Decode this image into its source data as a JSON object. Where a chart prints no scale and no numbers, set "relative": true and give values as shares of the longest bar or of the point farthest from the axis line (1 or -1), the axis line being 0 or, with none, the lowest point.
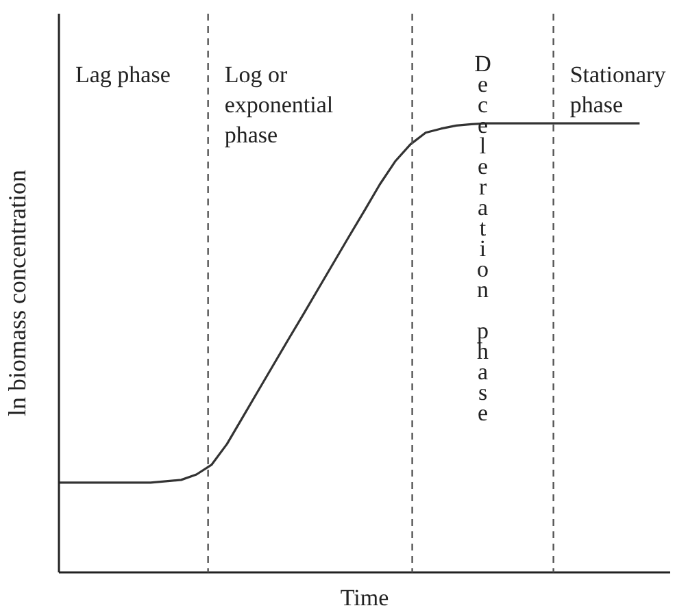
{
  "chart_data": {
    "type": "line",
    "relative": true,
    "xlabel": "Time",
    "ylabel": "ln biomass concentration",
    "tick_labels": false,
    "grid": false,
    "legend": false,
    "marker": "none",
    "categories": [
      null,
      null,
      null,
      null,
      null,
      null,
      null,
      null,
      null,
      null,
      null,
      null,
      null,
      null,
      null,
      null,
      null,
      null,
      null,
      null,
      null,
      null,
      null,
      null,
      null,
      null,
      null,
      null,
      null,
      null,
      null,
      null,
      null,
      null,
      null,
      null,
      null,
      null,
      null
    ],
    "series": [
      {
        "color": "#333333",
        "values": [
          0.2,
          0.2,
          0.2,
          0.2,
          0.2,
          0.2,
          0.2,
          0.203,
          0.206,
          0.218,
          0.24,
          0.286,
          0.344,
          0.402,
          0.46,
          0.518,
          0.575,
          0.633,
          0.691,
          0.749,
          0.806,
          0.864,
          0.915,
          0.953,
          0.979,
          0.988,
          0.995,
          0.998,
          1,
          1,
          1,
          1,
          1,
          1,
          1,
          1,
          1,
          1,
          1
        ]
      }
    ],
    "annotations": [
      "Lag phase",
      "Log or\nexponential\nphase",
      "Deceleration phase",
      "Stationary\nphase"
    ]
  }
}
